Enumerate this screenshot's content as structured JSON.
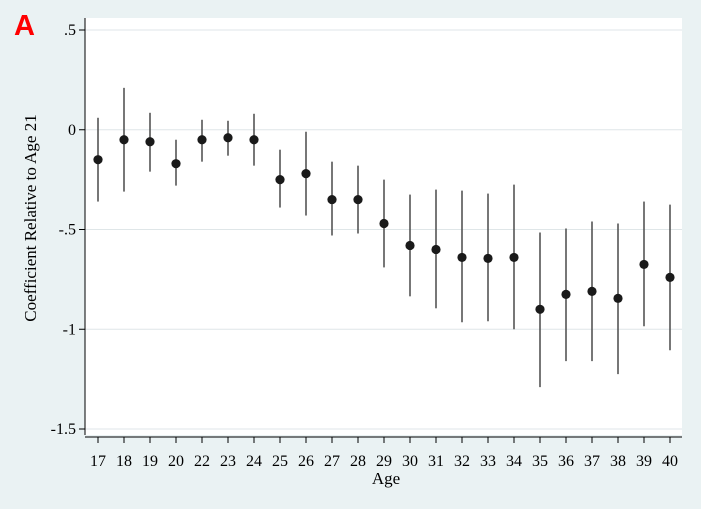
{
  "panel_label": "A",
  "chart_data": {
    "type": "scatter",
    "subtype": "coefficient-plot-with-error-bars",
    "title": "",
    "xlabel": "Age",
    "ylabel": "Coefficient Relative to Age 21",
    "ylim": [
      -1.5,
      0.5
    ],
    "yticks": [
      ".5",
      "0",
      "-.5",
      "-1",
      "-1.5"
    ],
    "ytick_values": [
      0.5,
      0,
      -0.5,
      -1,
      -1.5
    ],
    "grid": true,
    "legend": "none",
    "colors": {
      "background": "#eaf2f3",
      "plot_area": "#ffffff",
      "marker": "#1a1a1a",
      "error_bar": "#555555",
      "gridline": "#dfe6e8",
      "label": "#ff0000"
    },
    "x": [
      17,
      18,
      19,
      20,
      22,
      23,
      24,
      25,
      26,
      27,
      28,
      29,
      30,
      31,
      32,
      33,
      34,
      35,
      36,
      37,
      38,
      39,
      40
    ],
    "y": [
      -0.15,
      -0.05,
      -0.06,
      -0.17,
      -0.05,
      -0.04,
      -0.05,
      -0.25,
      -0.22,
      -0.35,
      -0.35,
      -0.47,
      -0.58,
      -0.6,
      -0.64,
      -0.645,
      -0.64,
      -0.9,
      -0.825,
      -0.81,
      -0.845,
      -0.675,
      -0.74
    ],
    "ci_low": [
      -0.36,
      -0.31,
      -0.21,
      -0.28,
      -0.16,
      -0.13,
      -0.18,
      -0.39,
      -0.43,
      -0.53,
      -0.52,
      -0.69,
      -0.835,
      -0.895,
      -0.965,
      -0.96,
      -1.0,
      -1.29,
      -1.16,
      -1.16,
      -1.225,
      -0.985,
      -1.105
    ],
    "ci_high": [
      0.06,
      0.21,
      0.085,
      -0.05,
      0.05,
      0.045,
      0.08,
      -0.1,
      -0.01,
      -0.16,
      -0.18,
      -0.25,
      -0.325,
      -0.3,
      -0.305,
      -0.32,
      -0.275,
      -0.515,
      -0.495,
      -0.46,
      -0.47,
      -0.36,
      -0.375
    ]
  }
}
